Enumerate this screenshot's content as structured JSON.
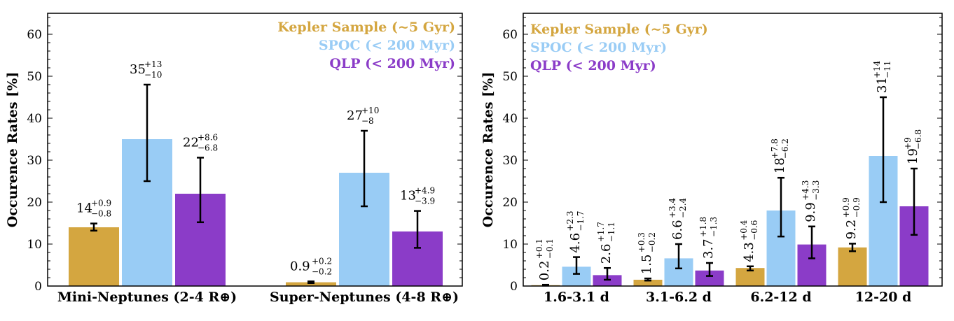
{
  "colors": {
    "kepler": "#D4A640",
    "spoc": "#99CCF5",
    "qlp": "#8B3CC8",
    "errorbar": "#000000"
  },
  "chart_data": [
    {
      "type": "bar",
      "ylabel": "Occurence Rates [%]",
      "ylim": [
        0,
        65
      ],
      "yticks": [
        0,
        10,
        20,
        30,
        40,
        50,
        60
      ],
      "categories": [
        "Mini-Neptunes (2-4 R⊕)",
        "Super-Neptunes (4-8 R⊕)"
      ],
      "legend_position": "top-right",
      "series": [
        {
          "name": "Kepler Sample (~5 Gyr)",
          "color_key": "kepler",
          "values": [
            14,
            0.9
          ],
          "err_up": [
            0.9,
            0.2
          ],
          "err_down": [
            0.8,
            0.2
          ],
          "labels": [
            {
              "main": "14",
              "up": "+0.9",
              "down": "−0.8"
            },
            {
              "main": "0.9",
              "up": "+0.2",
              "down": "−0.2"
            }
          ]
        },
        {
          "name": "SPOC (< 200 Myr)",
          "color_key": "spoc",
          "values": [
            35,
            27
          ],
          "err_up": [
            13,
            10
          ],
          "err_down": [
            10,
            8
          ],
          "labels": [
            {
              "main": "35",
              "up": "+13",
              "down": "−10"
            },
            {
              "main": "27",
              "up": "+10",
              "down": "−8"
            }
          ]
        },
        {
          "name": "QLP (< 200 Myr)",
          "color_key": "qlp",
          "values": [
            22,
            13
          ],
          "err_up": [
            8.6,
            4.9
          ],
          "err_down": [
            6.8,
            3.9
          ],
          "labels": [
            {
              "main": "22",
              "up": "+8.6",
              "down": "−6.8"
            },
            {
              "main": "13",
              "up": "+4.9",
              "down": "−3.9"
            }
          ]
        }
      ]
    },
    {
      "type": "bar",
      "ylabel": "Occurence Rates [%]",
      "ylim": [
        0,
        65
      ],
      "yticks": [
        0,
        10,
        20,
        30,
        40,
        50,
        60
      ],
      "categories": [
        "1.6-3.1 d",
        "3.1-6.2 d",
        "6.2-12 d",
        "12-20 d"
      ],
      "legend_position": "top-left",
      "series": [
        {
          "name": "Kepler Sample (~5 Gyr)",
          "color_key": "kepler",
          "values": [
            0.2,
            1.5,
            4.3,
            9.2
          ],
          "err_up": [
            0.1,
            0.3,
            0.4,
            0.9
          ],
          "err_down": [
            0.1,
            0.2,
            0.6,
            0.9
          ],
          "labels": [
            {
              "main": "0.2",
              "up": "+0.1",
              "down": "−0.1"
            },
            {
              "main": "1.5",
              "up": "+0.3",
              "down": "−0.2"
            },
            {
              "main": "4.3",
              "up": "+0.4",
              "down": "−0.6"
            },
            {
              "main": "9.2",
              "up": "+0.9",
              "down": "−0.9"
            }
          ]
        },
        {
          "name": "SPOC (< 200 Myr)",
          "color_key": "spoc",
          "values": [
            4.6,
            6.6,
            18,
            31
          ],
          "err_up": [
            2.3,
            3.4,
            7.8,
            14
          ],
          "err_down": [
            1.7,
            2.4,
            6.2,
            11
          ],
          "labels": [
            {
              "main": "4.6",
              "up": "+2.3",
              "down": "−1.7"
            },
            {
              "main": "6.6",
              "up": "+3.4",
              "down": "−2.4"
            },
            {
              "main": "18",
              "up": "+7.8",
              "down": "−6.2"
            },
            {
              "main": "31",
              "up": "+14",
              "down": "−11"
            }
          ]
        },
        {
          "name": "QLP (< 200 Myr)",
          "color_key": "qlp",
          "values": [
            2.6,
            3.7,
            9.9,
            19
          ],
          "err_up": [
            1.7,
            1.8,
            4.3,
            9
          ],
          "err_down": [
            1.1,
            1.3,
            3.3,
            6.8
          ],
          "labels": [
            {
              "main": "2.6",
              "up": "+1.7",
              "down": "−1.1"
            },
            {
              "main": "3.7",
              "up": "+1.8",
              "down": "−1.3"
            },
            {
              "main": "9.9",
              "up": "+4.3",
              "down": "−3.3"
            },
            {
              "main": "19",
              "up": "+9",
              "down": "−6.8"
            }
          ]
        }
      ]
    }
  ]
}
